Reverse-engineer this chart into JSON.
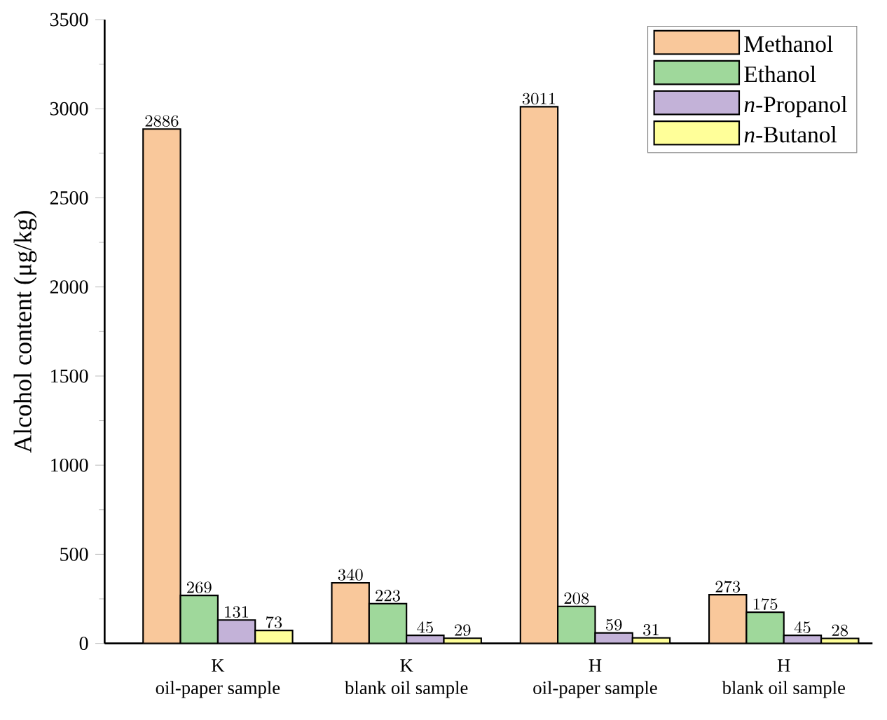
{
  "chart_data": {
    "type": "bar",
    "ylabel": "Alcohol content (μg/kg)",
    "categories": [
      "K\noil-paper sample",
      "K\nblank oil sample",
      "H\noil-paper sample",
      "H\nblank oil sample"
    ],
    "series": [
      {
        "name": "Methanol",
        "color": "#f9c89b",
        "values": [
          2886,
          340,
          3011,
          273
        ]
      },
      {
        "name": "Ethanol",
        "color": "#9fd89b",
        "values": [
          269,
          223,
          208,
          175
        ]
      },
      {
        "name": "*n*-Propanol",
        "color": "#c3b2d8",
        "values": [
          131,
          45,
          59,
          45
        ]
      },
      {
        "name": "*n*-Butanol",
        "color": "#ffff99",
        "values": [
          73,
          29,
          31,
          28
        ]
      }
    ],
    "ylim": [
      0,
      3500
    ],
    "yticks": [
      0,
      500,
      1000,
      1500,
      2000,
      2500,
      3000,
      3500
    ],
    "data_labels": true,
    "legend": "top right",
    "grid": false
  }
}
